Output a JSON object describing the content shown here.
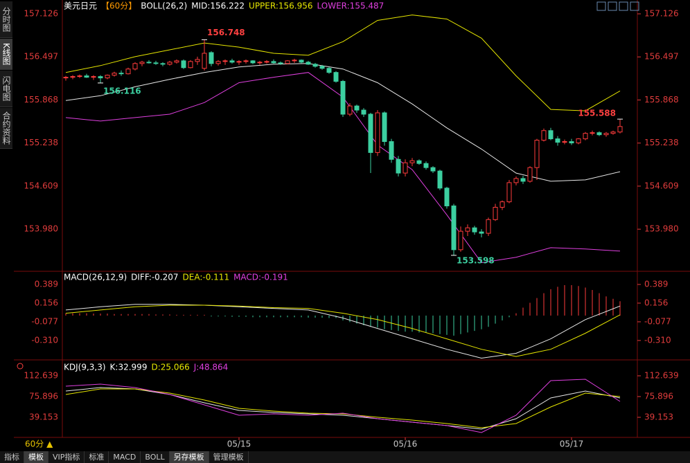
{
  "ui": {
    "sidebar_tabs": [
      "分时图",
      "K线图",
      "闪电图",
      "合约资料"
    ],
    "period_label": "60分 ▲",
    "bottom_tabs": [
      "指标",
      "模板",
      "VIP指标",
      "标准",
      "MACD",
      "BOLL",
      "另存模板",
      "管理模板"
    ]
  },
  "chart_data": [
    {
      "type": "candlestick",
      "header": [
        "美元日元",
        "【60分】",
        "BOLL(26,2)",
        "MID:156.222",
        "UPPER:156.956",
        "LOWER:155.487"
      ],
      "up_color": "#ff3c3c",
      "down_color": "#3ccfa0",
      "open": [
        156.19,
        156.2,
        156.21,
        156.22,
        156.2,
        156.21,
        156.19,
        156.23,
        156.26,
        156.25,
        156.32,
        156.4,
        156.42,
        156.41,
        156.4,
        156.39,
        156.42,
        156.44,
        156.34,
        156.43,
        156.33,
        156.56,
        156.4,
        156.43,
        156.44,
        156.42,
        156.43,
        156.44,
        156.41,
        156.42,
        156.43,
        156.41,
        156.4,
        156.44,
        156.45,
        156.42,
        156.39,
        156.36,
        156.33,
        156.27,
        156.14,
        155.66,
        155.78,
        155.72,
        155.66,
        155.1,
        155.68,
        155.26,
        155.0,
        154.8,
        154.95,
        154.98,
        154.94,
        154.88,
        154.83,
        154.58,
        154.32,
        153.68,
        153.95,
        154.0,
        153.94,
        153.92,
        154.12,
        154.3,
        154.38,
        154.66,
        154.72,
        154.68,
        154.88,
        155.28,
        155.42,
        155.3,
        155.25,
        155.26,
        155.24,
        155.3,
        155.38,
        155.39,
        155.36,
        155.38,
        155.4
      ],
      "high": [
        156.22,
        156.23,
        156.24,
        156.25,
        156.23,
        156.23,
        156.24,
        156.28,
        156.3,
        156.34,
        156.42,
        156.44,
        156.45,
        156.44,
        156.42,
        156.44,
        156.46,
        156.46,
        156.45,
        156.5,
        156.748,
        156.58,
        156.45,
        156.46,
        156.47,
        156.45,
        156.46,
        156.45,
        156.44,
        156.45,
        156.46,
        156.43,
        156.45,
        156.47,
        156.46,
        156.44,
        156.41,
        156.38,
        156.35,
        156.29,
        156.16,
        155.82,
        155.8,
        155.75,
        155.68,
        155.72,
        155.7,
        155.3,
        155.05,
        155.0,
        155.02,
        155.0,
        154.97,
        154.9,
        154.85,
        154.6,
        154.35,
        154.02,
        154.05,
        154.03,
        153.98,
        154.15,
        154.35,
        154.4,
        154.7,
        154.75,
        154.76,
        154.9,
        155.3,
        155.45,
        155.46,
        155.34,
        155.29,
        155.3,
        155.31,
        155.4,
        155.42,
        155.41,
        155.4,
        155.42,
        155.588
      ],
      "low": [
        156.15,
        156.17,
        156.19,
        156.19,
        156.16,
        156.116,
        156.17,
        156.21,
        156.22,
        156.24,
        156.3,
        156.36,
        156.4,
        156.38,
        156.36,
        156.37,
        156.4,
        156.32,
        156.33,
        156.38,
        156.3,
        156.36,
        156.37,
        156.38,
        156.4,
        156.38,
        156.4,
        156.39,
        156.38,
        156.4,
        156.4,
        156.38,
        156.39,
        156.41,
        156.4,
        156.38,
        156.34,
        156.31,
        156.25,
        156.12,
        155.62,
        155.63,
        155.68,
        155.62,
        154.8,
        155.05,
        155.2,
        154.95,
        154.75,
        154.75,
        154.9,
        154.92,
        154.85,
        154.8,
        154.55,
        154.28,
        153.598,
        153.65,
        153.88,
        153.9,
        153.86,
        153.88,
        154.1,
        154.26,
        154.36,
        154.62,
        154.64,
        154.66,
        154.7,
        155.26,
        155.28,
        155.2,
        155.22,
        155.21,
        155.22,
        155.28,
        155.35,
        155.34,
        155.33,
        155.36,
        155.38
      ],
      "close": [
        156.2,
        156.21,
        156.22,
        156.2,
        156.21,
        156.19,
        156.23,
        156.26,
        156.25,
        156.32,
        156.4,
        156.42,
        156.41,
        156.4,
        156.39,
        156.42,
        156.44,
        156.34,
        156.43,
        156.46,
        156.55,
        156.4,
        156.43,
        156.44,
        156.42,
        156.43,
        156.44,
        156.41,
        156.42,
        156.43,
        156.41,
        156.4,
        156.44,
        156.45,
        156.42,
        156.39,
        156.36,
        156.33,
        156.27,
        156.14,
        155.66,
        155.78,
        155.72,
        155.66,
        155.1,
        155.68,
        155.26,
        155.0,
        154.8,
        154.95,
        154.98,
        154.94,
        154.88,
        154.83,
        154.58,
        154.32,
        153.68,
        153.95,
        154.0,
        153.94,
        153.92,
        154.12,
        154.3,
        154.38,
        154.66,
        154.72,
        154.68,
        154.88,
        155.28,
        155.42,
        155.3,
        155.25,
        155.26,
        155.24,
        155.3,
        155.38,
        155.39,
        155.36,
        155.38,
        155.4,
        155.48
      ],
      "lines": [
        {
          "color": "#e8e8e8",
          "x": [
            0,
            5,
            10,
            15,
            20,
            25,
            30,
            35,
            40,
            45,
            50,
            55,
            60,
            65,
            70,
            75,
            80
          ],
          "values": [
            155.86,
            155.93,
            156.06,
            156.17,
            156.27,
            156.35,
            156.39,
            156.4,
            156.32,
            156.12,
            155.81,
            155.46,
            155.15,
            154.8,
            154.68,
            154.7,
            154.82
          ]
        },
        {
          "color": "#e6e600",
          "x": [
            0,
            5,
            10,
            15,
            20,
            25,
            30,
            35,
            40,
            45,
            50,
            55,
            60,
            65,
            70,
            75,
            80
          ],
          "values": [
            156.27,
            156.37,
            156.5,
            156.6,
            156.7,
            156.64,
            156.55,
            156.52,
            156.72,
            157.03,
            157.11,
            157.05,
            156.77,
            156.22,
            155.73,
            155.71,
            156.0
          ]
        },
        {
          "color": "#e040e0",
          "x": [
            0,
            5,
            10,
            15,
            20,
            25,
            30,
            35,
            40,
            45,
            50,
            55,
            60,
            65,
            70,
            75,
            80
          ],
          "values": [
            155.61,
            155.56,
            155.61,
            155.66,
            155.83,
            156.12,
            156.2,
            156.27,
            155.91,
            155.21,
            154.85,
            154.19,
            153.49,
            153.57,
            153.71,
            153.69,
            153.66
          ]
        }
      ],
      "xlim": [
        -0.5,
        82.5
      ],
      "ylim": [
        153.385,
        157.207
      ],
      "yticks": [
        {
          "value": 153.98,
          "label": "153.980"
        },
        154.609,
        155.238,
        155.868,
        156.497,
        157.126
      ]
    },
    {
      "type": "macd",
      "header": [
        "MACD(26,12,9)",
        "DIFF:-0.207",
        "DEA:-0.111",
        "MACD:-0.191"
      ],
      "up_color": "#ff3c3c",
      "down_color": "#3ccfa0",
      "values": [
        0.03,
        0.03,
        0.03,
        0.03,
        0.025,
        0.025,
        0.025,
        0.02,
        0.02,
        0.02,
        0.02,
        0.02,
        0.02,
        0.015,
        0.015,
        0.015,
        0.01,
        0.01,
        0.01,
        0.01,
        0.01,
        -0.01,
        -0.01,
        -0.01,
        -0.015,
        -0.015,
        -0.015,
        -0.02,
        -0.02,
        -0.02,
        -0.02,
        -0.02,
        -0.02,
        -0.02,
        -0.02,
        -0.025,
        -0.025,
        -0.025,
        -0.03,
        -0.03,
        -0.06,
        -0.08,
        -0.1,
        -0.12,
        -0.14,
        -0.15,
        -0.17,
        -0.18,
        -0.19,
        -0.2,
        -0.2,
        -0.21,
        -0.21,
        -0.22,
        -0.23,
        -0.24,
        -0.25,
        -0.23,
        -0.21,
        -0.19,
        -0.17,
        -0.14,
        -0.1,
        -0.06,
        -0.02,
        0.03,
        0.1,
        0.16,
        0.22,
        0.28,
        0.33,
        0.36,
        0.38,
        0.38,
        0.37,
        0.35,
        0.32,
        0.28,
        0.24,
        0.21,
        0.18
      ],
      "lines": [
        {
          "color": "#e8e8e8",
          "x": [
            0,
            5,
            10,
            15,
            20,
            25,
            30,
            35,
            40,
            45,
            50,
            55,
            60,
            65,
            70,
            75,
            80
          ],
          "values": [
            0.07,
            0.11,
            0.14,
            0.14,
            0.13,
            0.11,
            0.09,
            0.07,
            -0.03,
            -0.16,
            -0.29,
            -0.42,
            -0.53,
            -0.47,
            -0.29,
            -0.05,
            0.12
          ]
        },
        {
          "color": "#e6e600",
          "x": [
            0,
            5,
            10,
            15,
            20,
            25,
            30,
            35,
            40,
            45,
            50,
            55,
            60,
            65,
            70,
            75,
            80
          ],
          "values": [
            0.03,
            0.07,
            0.11,
            0.13,
            0.13,
            0.12,
            0.1,
            0.09,
            0.03,
            -0.05,
            -0.16,
            -0.29,
            -0.42,
            -0.51,
            -0.42,
            -0.22,
            0.01
          ]
        }
      ],
      "xlim": [
        -0.5,
        82.5
      ],
      "ylim": [
        -0.552,
        0.527
      ],
      "yticks": [
        {
          "value": -0.31,
          "label": "-0.310"
        },
        -0.077,
        0.156,
        0.389
      ]
    },
    {
      "type": "line",
      "header": [
        "KDJ(9,3,3)",
        "K:32.999",
        "D:25.066",
        "J:48.864"
      ],
      "series": [
        {
          "color": "#e8e8e8",
          "x": [
            0,
            5,
            10,
            15,
            20,
            25,
            30,
            35,
            40,
            45,
            50,
            55,
            60,
            65,
            70,
            75,
            80
          ],
          "values": [
            85.7,
            91.8,
            89.4,
            79.6,
            64.9,
            51.4,
            47.7,
            45.3,
            42.8,
            36.7,
            30.6,
            24.5,
            18.3,
            36.7,
            73.4,
            85.7,
            73.4
          ]
        },
        {
          "color": "#e6e600",
          "x": [
            0,
            5,
            10,
            15,
            20,
            25,
            30,
            35,
            40,
            45,
            50,
            55,
            60,
            65,
            70,
            75,
            80
          ],
          "values": [
            79.6,
            89.4,
            89.4,
            82.0,
            69.8,
            55.1,
            50.2,
            46.5,
            45.3,
            39.2,
            34.2,
            28.1,
            20.8,
            28.1,
            57.5,
            82.0,
            75.9
          ]
        },
        {
          "color": "#e040e0",
          "x": [
            0,
            5,
            10,
            15,
            20,
            25,
            30,
            35,
            40,
            45,
            50,
            55,
            60,
            65,
            70,
            75,
            80
          ],
          "values": [
            94.3,
            97.9,
            91.8,
            79.6,
            61.2,
            42.8,
            45.3,
            42.8,
            46.5,
            36.7,
            30.6,
            24.5,
            12.2,
            42.8,
            104.1,
            106.5,
            67.3
          ]
        }
      ],
      "xlim": [
        -0.5,
        82.5
      ],
      "ylim": [
        3.6,
        134.7
      ],
      "yticks": [
        39.153,
        75.896,
        112.639
      ],
      "xticks": [
        {
          "value": 25,
          "label": "05/15"
        },
        {
          "value": 49,
          "label": "05/16"
        },
        {
          "value": 73,
          "label": "05/17"
        }
      ]
    }
  ]
}
